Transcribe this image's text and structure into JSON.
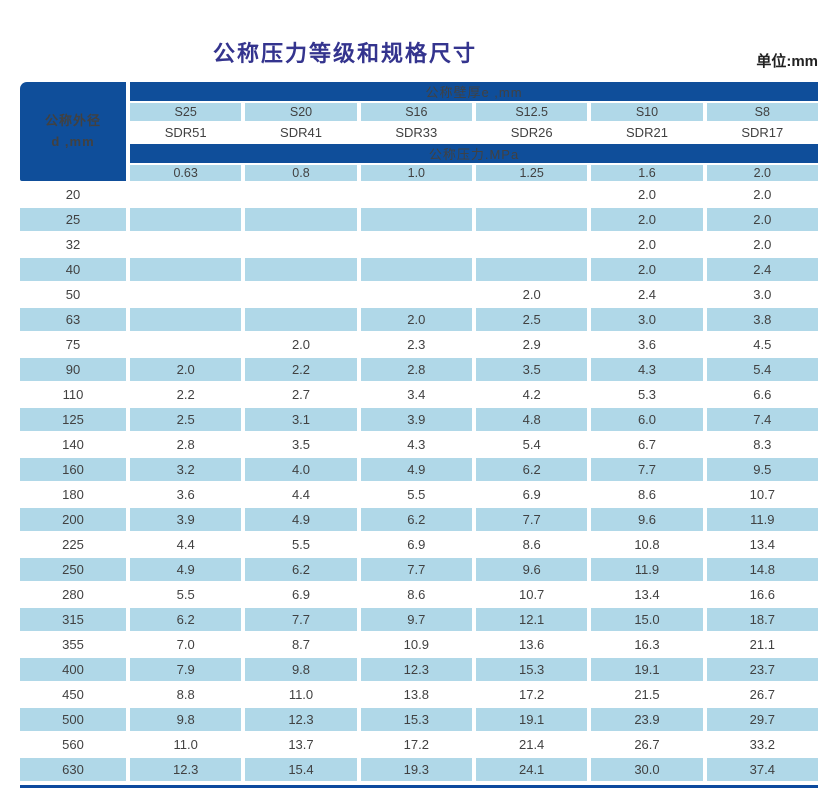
{
  "page": {
    "title": "公称压力等级和规格尺寸",
    "unit_label": "单位:mm"
  },
  "colors": {
    "header_blue": "#0f4e9a",
    "stripe_blue": "#b0d8e8",
    "title_color": "#34348e"
  },
  "table": {
    "corner_header": {
      "line1": "公称外径",
      "line2": "d ,mm"
    },
    "wall_thickness_bar": "公称壁厚e ,mm",
    "pressure_bar": "公称压力.MPa",
    "s_series": [
      "S25",
      "S20",
      "S16",
      "S12.5",
      "S10",
      "S8"
    ],
    "sdr_series": [
      "SDR51",
      "SDR41",
      "SDR33",
      "SDR26",
      "SDR21",
      "SDR17"
    ],
    "pressure_values": [
      "0.63",
      "0.8",
      "1.0",
      "1.25",
      "1.6",
      "2.0"
    ],
    "rows": [
      {
        "d": "20",
        "values": [
          "",
          "",
          "",
          "",
          "2.0",
          "2.0"
        ]
      },
      {
        "d": "25",
        "values": [
          "",
          "",
          "",
          "",
          "2.0",
          "2.0"
        ]
      },
      {
        "d": "32",
        "values": [
          "",
          "",
          "",
          "",
          "2.0",
          "2.0"
        ]
      },
      {
        "d": "40",
        "values": [
          "",
          "",
          "",
          "",
          "2.0",
          "2.4"
        ]
      },
      {
        "d": "50",
        "values": [
          "",
          "",
          "",
          "2.0",
          "2.4",
          "3.0"
        ]
      },
      {
        "d": "63",
        "values": [
          "",
          "",
          "2.0",
          "2.5",
          "3.0",
          "3.8"
        ]
      },
      {
        "d": "75",
        "values": [
          "",
          "2.0",
          "2.3",
          "2.9",
          "3.6",
          "4.5"
        ]
      },
      {
        "d": "90",
        "values": [
          "2.0",
          "2.2",
          "2.8",
          "3.5",
          "4.3",
          "5.4"
        ]
      },
      {
        "d": "110",
        "values": [
          "2.2",
          "2.7",
          "3.4",
          "4.2",
          "5.3",
          "6.6"
        ]
      },
      {
        "d": "125",
        "values": [
          "2.5",
          "3.1",
          "3.9",
          "4.8",
          "6.0",
          "7.4"
        ]
      },
      {
        "d": "140",
        "values": [
          "2.8",
          "3.5",
          "4.3",
          "5.4",
          "6.7",
          "8.3"
        ]
      },
      {
        "d": "160",
        "values": [
          "3.2",
          "4.0",
          "4.9",
          "6.2",
          "7.7",
          "9.5"
        ]
      },
      {
        "d": "180",
        "values": [
          "3.6",
          "4.4",
          "5.5",
          "6.9",
          "8.6",
          "10.7"
        ]
      },
      {
        "d": "200",
        "values": [
          "3.9",
          "4.9",
          "6.2",
          "7.7",
          "9.6",
          "11.9"
        ]
      },
      {
        "d": "225",
        "values": [
          "4.4",
          "5.5",
          "6.9",
          "8.6",
          "10.8",
          "13.4"
        ]
      },
      {
        "d": "250",
        "values": [
          "4.9",
          "6.2",
          "7.7",
          "9.6",
          "11.9",
          "14.8"
        ]
      },
      {
        "d": "280",
        "values": [
          "5.5",
          "6.9",
          "8.6",
          "10.7",
          "13.4",
          "16.6"
        ]
      },
      {
        "d": "315",
        "values": [
          "6.2",
          "7.7",
          "9.7",
          "12.1",
          "15.0",
          "18.7"
        ]
      },
      {
        "d": "355",
        "values": [
          "7.0",
          "8.7",
          "10.9",
          "13.6",
          "16.3",
          "21.1"
        ]
      },
      {
        "d": "400",
        "values": [
          "7.9",
          "9.8",
          "12.3",
          "15.3",
          "19.1",
          "23.7"
        ]
      },
      {
        "d": "450",
        "values": [
          "8.8",
          "11.0",
          "13.8",
          "17.2",
          "21.5",
          "26.7"
        ]
      },
      {
        "d": "500",
        "values": [
          "9.8",
          "12.3",
          "15.3",
          "19.1",
          "23.9",
          "29.7"
        ]
      },
      {
        "d": "560",
        "values": [
          "11.0",
          "13.7",
          "17.2",
          "21.4",
          "26.7",
          "33.2"
        ]
      },
      {
        "d": "630",
        "values": [
          "12.3",
          "15.4",
          "19.3",
          "24.1",
          "30.0",
          "37.4"
        ]
      }
    ]
  }
}
